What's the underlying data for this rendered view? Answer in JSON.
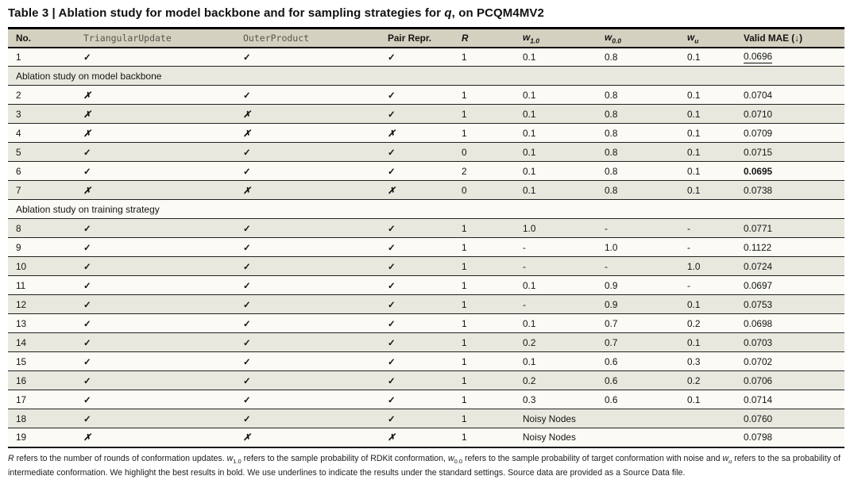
{
  "title": {
    "part1": "Table 3 | Ablation study for model backbone and for sampling strategies for ",
    "italic_q": "q",
    "part2": ", on PCQM4MV2"
  },
  "glyphs": {
    "check": "✓",
    "cross": "✗"
  },
  "table": {
    "columns": [
      {
        "id": "no",
        "label": "No.",
        "style": "bold"
      },
      {
        "id": "triangular-update",
        "label": "TriangularUpdate",
        "style": "mono"
      },
      {
        "id": "outer-product",
        "label": "OuterProduct",
        "style": "mono"
      },
      {
        "id": "pair-repr",
        "label": "Pair Repr.",
        "style": "bold"
      },
      {
        "id": "r",
        "label": "R",
        "style": "bold-italic"
      },
      {
        "id": "w10",
        "label": "w",
        "sub": "1.0",
        "style": "bold-italic"
      },
      {
        "id": "w00",
        "label": "w",
        "sub": "0.0",
        "style": "bold-italic"
      },
      {
        "id": "wu",
        "label": "w",
        "sub": "u",
        "style": "bold-italic"
      },
      {
        "id": "valid-mae",
        "label": "Valid MAE (↓)",
        "style": "bold"
      }
    ],
    "rows": [
      {
        "type": "data",
        "no": "1",
        "triangular_update": "check",
        "outer_product": "check",
        "pair_repr": "check",
        "r": "1",
        "w10": "0.1",
        "w00": "0.8",
        "wu": "0.1",
        "mae": "0.0696",
        "mae_format": "underline"
      },
      {
        "type": "section",
        "label": "Ablation study on model backbone"
      },
      {
        "type": "data",
        "no": "2",
        "triangular_update": "cross",
        "outer_product": "check",
        "pair_repr": "check",
        "r": "1",
        "w10": "0.1",
        "w00": "0.8",
        "wu": "0.1",
        "mae": "0.0704"
      },
      {
        "type": "data",
        "no": "3",
        "triangular_update": "cross",
        "outer_product": "cross",
        "pair_repr": "check",
        "r": "1",
        "w10": "0.1",
        "w00": "0.8",
        "wu": "0.1",
        "mae": "0.0710"
      },
      {
        "type": "data",
        "no": "4",
        "triangular_update": "cross",
        "outer_product": "cross",
        "pair_repr": "cross",
        "r": "1",
        "w10": "0.1",
        "w00": "0.8",
        "wu": "0.1",
        "mae": "0.0709"
      },
      {
        "type": "data",
        "no": "5",
        "triangular_update": "check",
        "outer_product": "check",
        "pair_repr": "check",
        "r": "0",
        "w10": "0.1",
        "w00": "0.8",
        "wu": "0.1",
        "mae": "0.0715"
      },
      {
        "type": "data",
        "no": "6",
        "triangular_update": "check",
        "outer_product": "check",
        "pair_repr": "check",
        "r": "2",
        "w10": "0.1",
        "w00": "0.8",
        "wu": "0.1",
        "mae": "0.0695",
        "mae_format": "bold"
      },
      {
        "type": "data",
        "no": "7",
        "triangular_update": "cross",
        "outer_product": "cross",
        "pair_repr": "cross",
        "r": "0",
        "w10": "0.1",
        "w00": "0.8",
        "wu": "0.1",
        "mae": "0.0738"
      },
      {
        "type": "section",
        "label": "Ablation study on training strategy"
      },
      {
        "type": "data",
        "no": "8",
        "triangular_update": "check",
        "outer_product": "check",
        "pair_repr": "check",
        "r": "1",
        "w10": "1.0",
        "w00": "-",
        "wu": "-",
        "mae": "0.0771"
      },
      {
        "type": "data",
        "no": "9",
        "triangular_update": "check",
        "outer_product": "check",
        "pair_repr": "check",
        "r": "1",
        "w10": "-",
        "w00": "1.0",
        "wu": "-",
        "mae": "0.1122"
      },
      {
        "type": "data",
        "no": "10",
        "triangular_update": "check",
        "outer_product": "check",
        "pair_repr": "check",
        "r": "1",
        "w10": "-",
        "w00": "-",
        "wu": "1.0",
        "mae": "0.0724"
      },
      {
        "type": "data",
        "no": "11",
        "triangular_update": "check",
        "outer_product": "check",
        "pair_repr": "check",
        "r": "1",
        "w10": "0.1",
        "w00": "0.9",
        "wu": "-",
        "mae": "0.0697"
      },
      {
        "type": "data",
        "no": "12",
        "triangular_update": "check",
        "outer_product": "check",
        "pair_repr": "check",
        "r": "1",
        "w10": "-",
        "w00": "0.9",
        "wu": "0.1",
        "mae": "0.0753"
      },
      {
        "type": "data",
        "no": "13",
        "triangular_update": "check",
        "outer_product": "check",
        "pair_repr": "check",
        "r": "1",
        "w10": "0.1",
        "w00": "0.7",
        "wu": "0.2",
        "mae": "0.0698"
      },
      {
        "type": "data",
        "no": "14",
        "triangular_update": "check",
        "outer_product": "check",
        "pair_repr": "check",
        "r": "1",
        "w10": "0.2",
        "w00": "0.7",
        "wu": "0.1",
        "mae": "0.0703"
      },
      {
        "type": "data",
        "no": "15",
        "triangular_update": "check",
        "outer_product": "check",
        "pair_repr": "check",
        "r": "1",
        "w10": "0.1",
        "w00": "0.6",
        "wu": "0.3",
        "mae": "0.0702"
      },
      {
        "type": "data",
        "no": "16",
        "triangular_update": "check",
        "outer_product": "check",
        "pair_repr": "check",
        "r": "1",
        "w10": "0.2",
        "w00": "0.6",
        "wu": "0.2",
        "mae": "0.0706"
      },
      {
        "type": "data",
        "no": "17",
        "triangular_update": "check",
        "outer_product": "check",
        "pair_repr": "check",
        "r": "1",
        "w10": "0.3",
        "w00": "0.6",
        "wu": "0.1",
        "mae": "0.0714"
      },
      {
        "type": "data",
        "no": "18",
        "triangular_update": "check",
        "outer_product": "check",
        "pair_repr": "check",
        "r": "1",
        "w_span": "Noisy Nodes",
        "mae": "0.0760"
      },
      {
        "type": "data",
        "no": "19",
        "triangular_update": "cross",
        "outer_product": "cross",
        "pair_repr": "cross",
        "r": "1",
        "w_span": "Noisy Nodes",
        "mae": "0.0798"
      }
    ]
  },
  "footnote": {
    "segments": [
      {
        "text": "R",
        "italic": true
      },
      {
        "text": " refers to the number of rounds of conformation updates. "
      },
      {
        "text": "w",
        "italic": true
      },
      {
        "text": "1.0",
        "sub": true
      },
      {
        "text": " refers to the sample probability of RDKit conformation, "
      },
      {
        "text": "w",
        "italic": true
      },
      {
        "text": "0.0",
        "sub": true
      },
      {
        "text": " refers to the sample probability of target conformation with noise and "
      },
      {
        "text": "w",
        "italic": true
      },
      {
        "text": "u",
        "sub": true,
        "italic": true
      },
      {
        "text": " refers to the sa probability of intermediate conformation. We highlight the best results in bold. We use underlines to indicate the results under the standard settings. Source data are provided as a Source Data file."
      }
    ]
  },
  "colors": {
    "header_bg": "#d5d1c0",
    "stripe_dark": "#e9e8de",
    "stripe_light": "#fbfaf4",
    "rule": "#000000"
  }
}
